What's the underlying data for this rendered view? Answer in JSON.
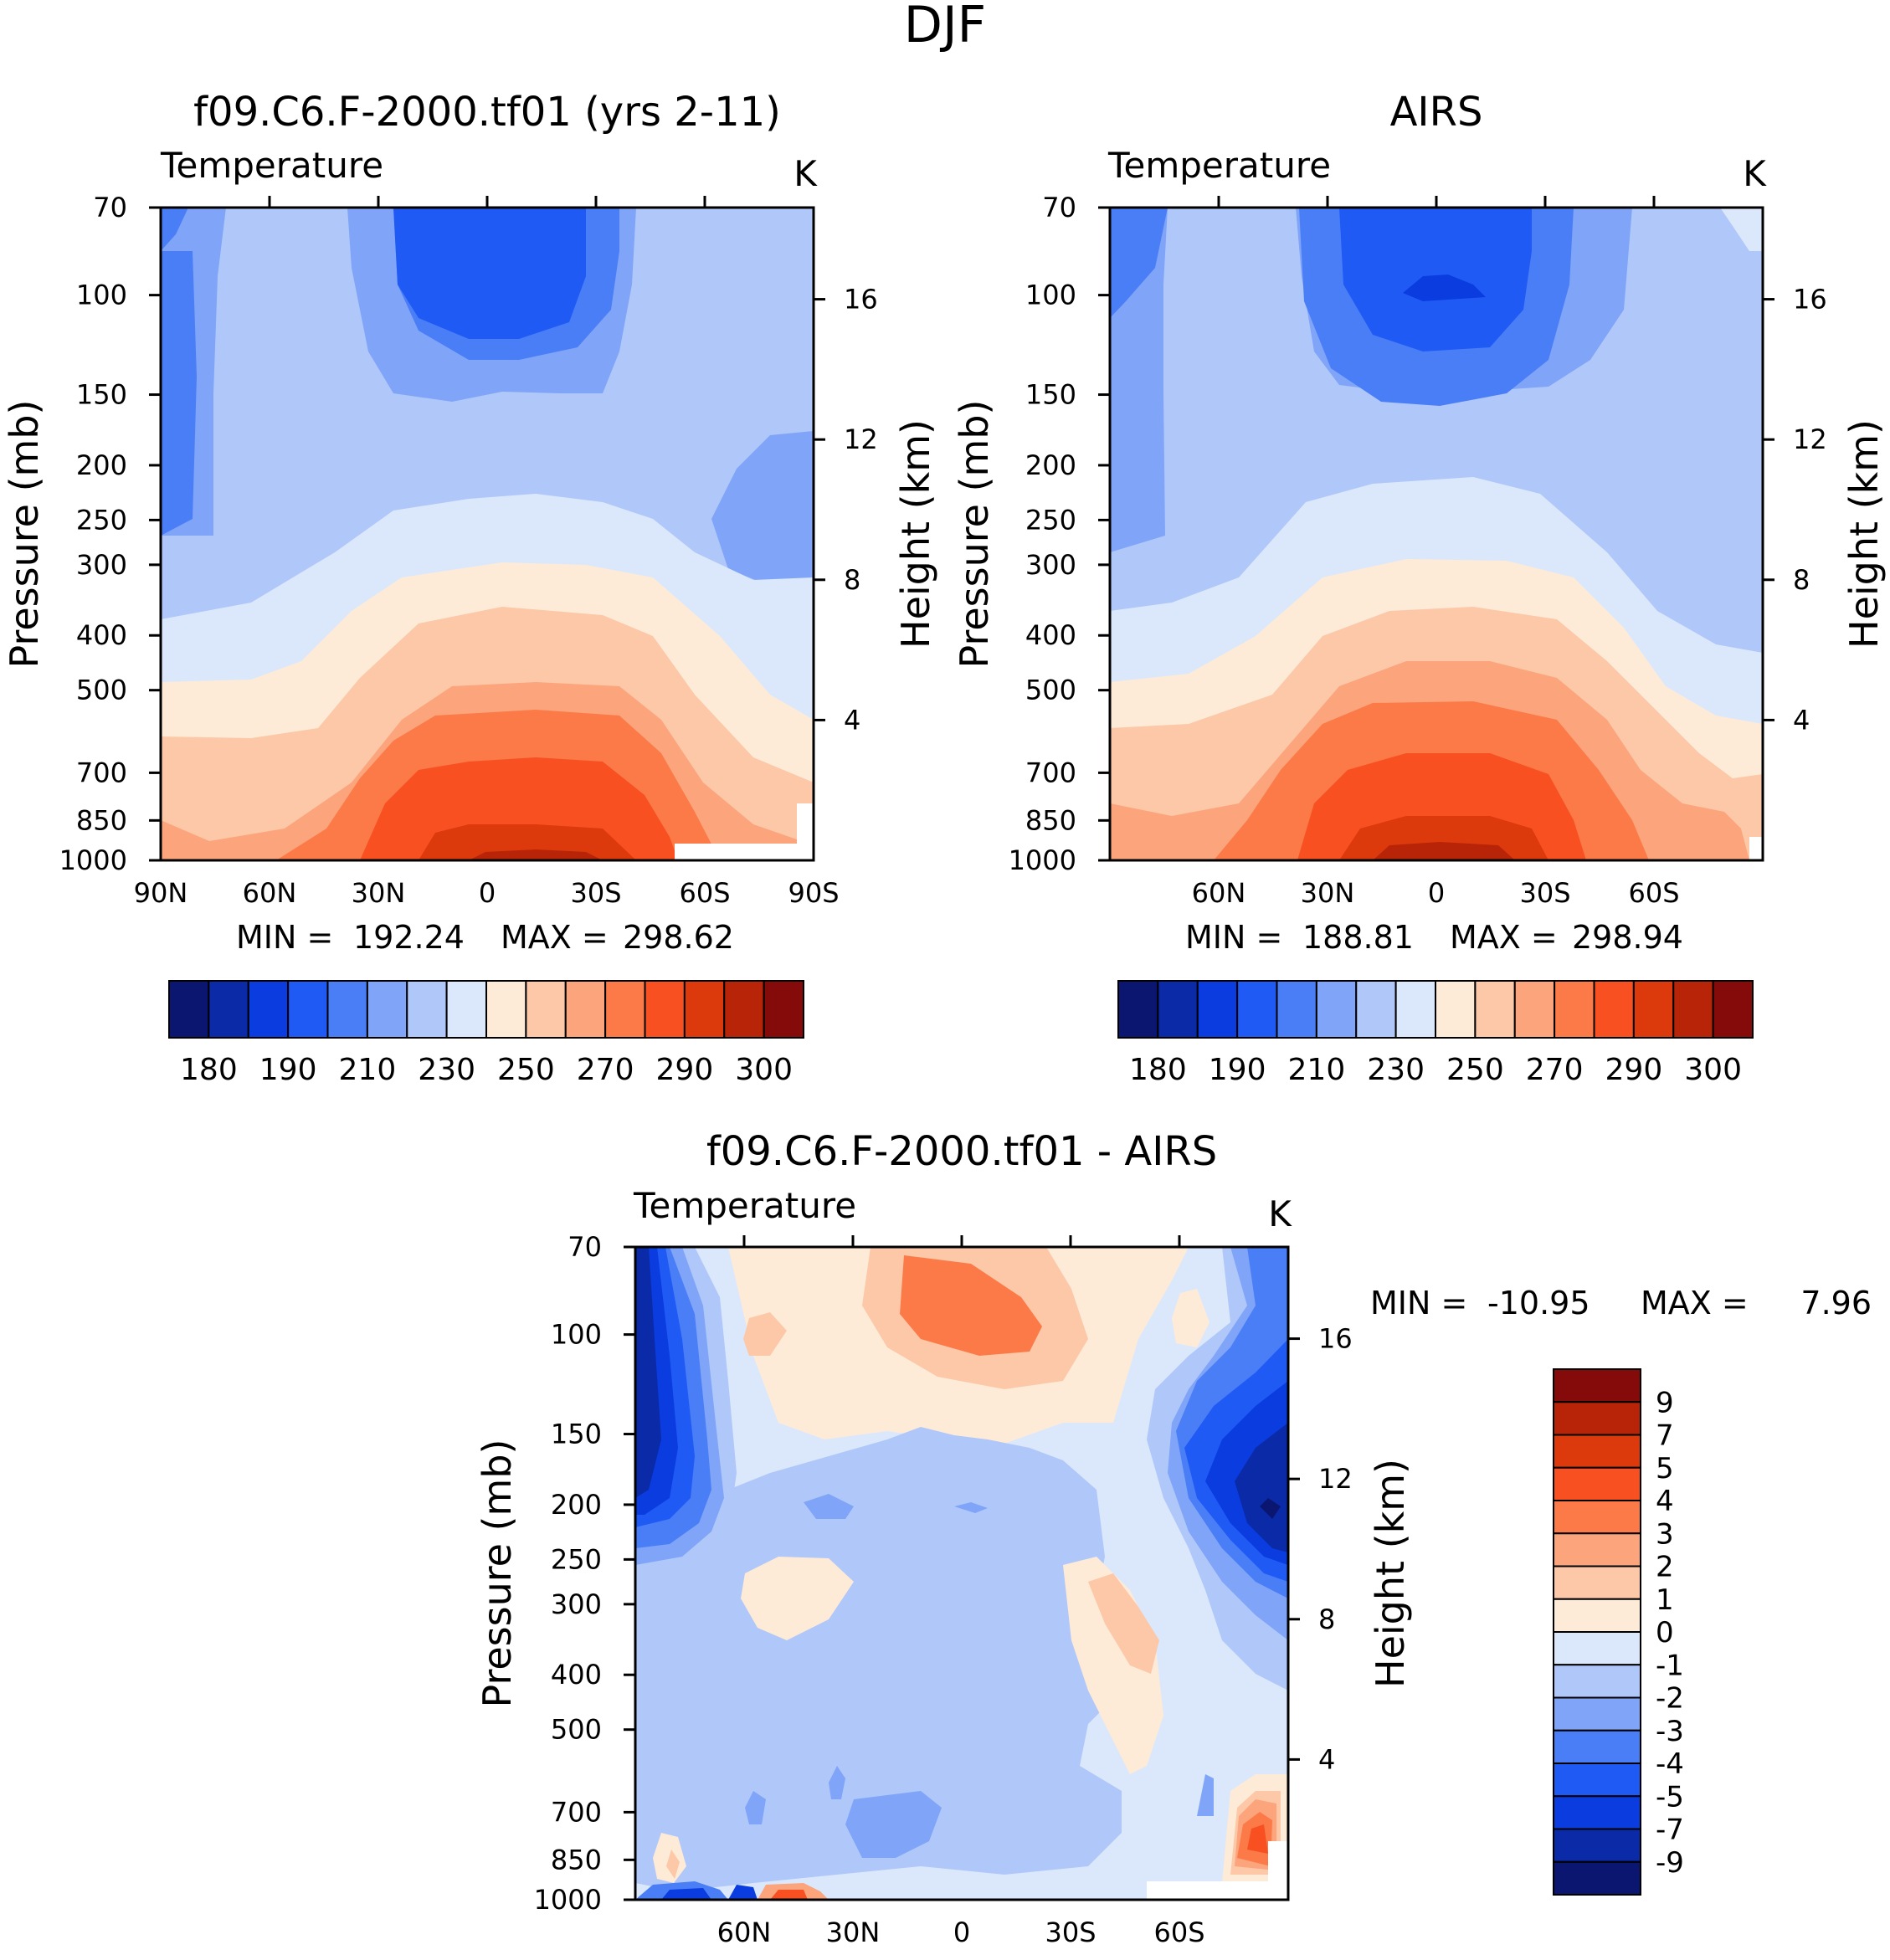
{
  "chart_data": {
    "type": "heatmap",
    "title": "DJF",
    "units": "K",
    "variable": "Temperature",
    "yaxis": {
      "label": "Pressure (mb)",
      "ticks": [
        70,
        100,
        150,
        200,
        250,
        300,
        400,
        500,
        700,
        850,
        1000
      ],
      "range": [
        70,
        1000
      ],
      "scale": "log"
    },
    "y2axis": {
      "label": "Height (km)",
      "ticks": [
        16,
        12,
        8,
        4
      ]
    },
    "panels": [
      {
        "id": "model",
        "title": "f09.C6.F-2000.tf01 (yrs 2-11)",
        "subtitle_left": "Temperature",
        "subtitle_right": "K",
        "xticks": [
          "90N",
          "60N",
          "30N",
          "0",
          "30S",
          "60S",
          "90S"
        ],
        "stats": {
          "min_label": "MIN =",
          "min": "192.24",
          "max_label": "MAX =",
          "max": "298.62"
        },
        "colorbar_labels": [
          "180",
          "190",
          "210",
          "230",
          "250",
          "270",
          "290",
          "300"
        ],
        "levels": [
          175,
          180,
          185,
          190,
          200,
          210,
          220,
          230,
          240,
          250,
          260,
          270,
          280,
          290,
          295,
          300
        ]
      },
      {
        "id": "obs",
        "title": "AIRS",
        "subtitle_left": "Temperature",
        "subtitle_right": "K",
        "xticks": [
          "60N",
          "30N",
          "0",
          "30S",
          "60S"
        ],
        "stats": {
          "min_label": "MIN =",
          "min": "188.81",
          "max_label": "MAX =",
          "max": "298.94"
        },
        "colorbar_labels": [
          "180",
          "190",
          "210",
          "230",
          "250",
          "270",
          "290",
          "300"
        ],
        "levels": [
          175,
          180,
          185,
          190,
          200,
          210,
          220,
          230,
          240,
          250,
          260,
          270,
          280,
          290,
          295,
          300
        ]
      },
      {
        "id": "diff",
        "title": "f09.C6.F-2000.tf01 - AIRS",
        "subtitle_left": "Temperature",
        "subtitle_right": "K",
        "xticks": [
          "60N",
          "30N",
          "0",
          "30S",
          "60S"
        ],
        "stats": {
          "min_label": "MIN =",
          "min": "-10.95",
          "max_label": "MAX =",
          "max": "7.96"
        },
        "colorbar_labels": [
          "9",
          "7",
          "5",
          "4",
          "3",
          "2",
          "1",
          "0",
          "-1",
          "-2",
          "-3",
          "-4",
          "-5",
          "-7",
          "-9"
        ],
        "levels": [
          -9,
          -7,
          -5,
          -4,
          -3,
          -2,
          -1,
          0,
          1,
          2,
          3,
          4,
          5,
          7,
          9
        ]
      }
    ],
    "colors": [
      "#0a1670",
      "#0a2aa8",
      "#0a3ce0",
      "#1f5af5",
      "#4a7ef7",
      "#7fa4f8",
      "#b0c7f9",
      "#dbe8fb",
      "#fdebd8",
      "#fcc8a8",
      "#fca47c",
      "#fb7a48",
      "#f85020",
      "#dc3a0c",
      "#b82408",
      "#850a0a"
    ]
  }
}
